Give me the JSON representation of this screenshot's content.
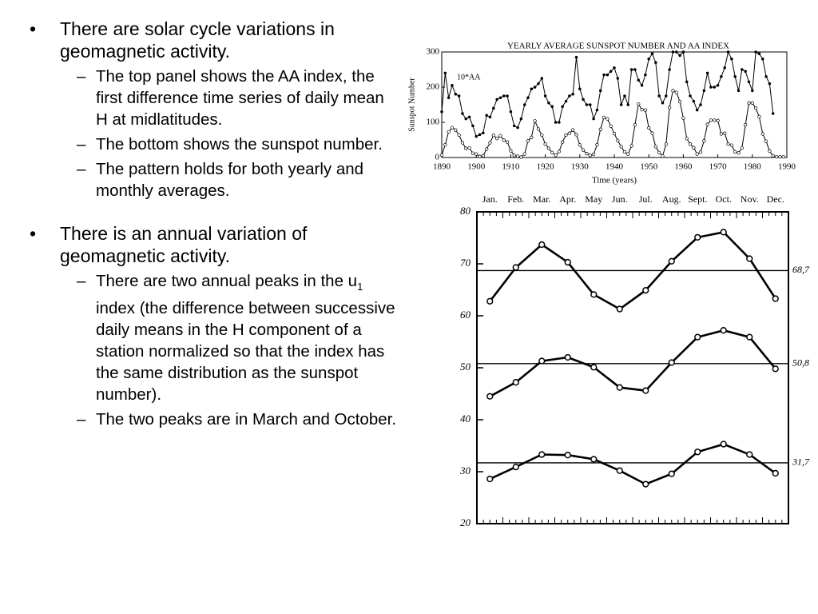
{
  "slide": {
    "bullets": [
      {
        "text": "There are solar cycle variations in geomagnetic activity.",
        "sub": [
          {
            "text": "The top panel shows the AA index, the first difference time series of daily mean H at midlatitudes."
          },
          {
            "text": "The bottom shows the sunspot number."
          },
          {
            "text": "The pattern holds for both yearly and monthly averages."
          }
        ]
      },
      {
        "text": "There is an annual variation of geomagnetic activity.",
        "sub": [
          {
            "text_parts": [
              "There are two annual peaks in the u",
              "1",
              " index (the difference between successive daily means in the H component of a station normalized so that the index has the same distribution as the sunspot number)."
            ]
          },
          {
            "text": "The two peaks are in March and October."
          }
        ]
      }
    ]
  },
  "chart_data": [
    {
      "type": "line",
      "title": "YEARLY AVERAGE SUNSPOT NUMBER AND AA INDEX",
      "y_label": "Sunspot Number",
      "x_label": "Time (years)",
      "x": [
        1890,
        1891,
        1892,
        1893,
        1894,
        1895,
        1896,
        1897,
        1898,
        1899,
        1900,
        1901,
        1902,
        1903,
        1904,
        1905,
        1906,
        1907,
        1908,
        1909,
        1910,
        1911,
        1912,
        1913,
        1914,
        1915,
        1916,
        1917,
        1918,
        1919,
        1920,
        1921,
        1922,
        1923,
        1924,
        1925,
        1926,
        1927,
        1928,
        1929,
        1930,
        1931,
        1932,
        1933,
        1934,
        1935,
        1936,
        1937,
        1938,
        1939,
        1940,
        1941,
        1942,
        1943,
        1944,
        1945,
        1946,
        1947,
        1948,
        1949,
        1950,
        1951,
        1952,
        1953,
        1954,
        1955,
        1956,
        1957,
        1958,
        1959,
        1960,
        1961,
        1962,
        1963,
        1964,
        1965,
        1966,
        1967,
        1968,
        1969,
        1970,
        1971,
        1972,
        1973,
        1974,
        1975,
        1976,
        1977,
        1978,
        1979,
        1980,
        1981,
        1982,
        1983,
        1984,
        1985,
        1986,
        1987,
        1988,
        1989
      ],
      "xlim": [
        1890,
        1990
      ],
      "xticks": [
        1890,
        1900,
        1910,
        1920,
        1930,
        1940,
        1950,
        1960,
        1970,
        1980,
        1990
      ],
      "ylim": [
        0,
        300
      ],
      "yticks": [
        0,
        100,
        200,
        300
      ],
      "series": [
        {
          "name": "10*AA",
          "color": "#000000",
          "marker": "dot",
          "values": [
            130,
            240,
            170,
            205,
            180,
            175,
            125,
            110,
            115,
            90,
            60,
            65,
            70,
            120,
            115,
            140,
            165,
            170,
            175,
            175,
            130,
            90,
            85,
            110,
            150,
            170,
            195,
            200,
            210,
            225,
            175,
            155,
            145,
            100,
            100,
            145,
            160,
            175,
            180,
            285,
            195,
            165,
            150,
            150,
            110,
            135,
            190,
            235,
            235,
            245,
            255,
            225,
            150,
            175,
            150,
            250,
            250,
            220,
            205,
            235,
            280,
            295,
            270,
            175,
            155,
            175,
            250,
            300,
            300,
            290,
            300,
            215,
            175,
            160,
            135,
            150,
            190,
            240,
            200,
            200,
            205,
            230,
            255,
            300,
            280,
            230,
            190,
            250,
            245,
            215,
            190,
            300,
            295,
            280,
            230,
            210,
            125,
            null,
            null,
            null
          ]
        },
        {
          "color": "#000000",
          "marker": "circle",
          "values": [
            7,
            36,
            73,
            85,
            78,
            64,
            42,
            26,
            27,
            12,
            10,
            3,
            5,
            24,
            42,
            63,
            54,
            62,
            49,
            44,
            19,
            6,
            4,
            1,
            10,
            47,
            57,
            104,
            81,
            64,
            38,
            26,
            14,
            6,
            17,
            44,
            64,
            69,
            78,
            65,
            36,
            21,
            11,
            6,
            9,
            36,
            80,
            114,
            110,
            89,
            68,
            48,
            31,
            16,
            10,
            33,
            93,
            152,
            136,
            135,
            84,
            69,
            31,
            14,
            4,
            38,
            142,
            190,
            185,
            159,
            112,
            54,
            38,
            28,
            10,
            15,
            47,
            94,
            106,
            106,
            105,
            67,
            69,
            38,
            35,
            16,
            13,
            27,
            93,
            155,
            155,
            140,
            116,
            67,
            46,
            18,
            5,
            2,
            2,
            2
          ]
        }
      ]
    },
    {
      "type": "line",
      "categories": [
        "Jan.",
        "Feb.",
        "Mar.",
        "Apr.",
        "May",
        "Jun.",
        "Jul.",
        "Aug.",
        "Sept.",
        "Oct.",
        "Nov.",
        "Dec."
      ],
      "ylim": [
        20,
        80
      ],
      "yticks": [
        20,
        30,
        40,
        50,
        60,
        70,
        80
      ],
      "reference_lines": [
        {
          "value": 68.7,
          "label": "68,7"
        },
        {
          "value": 50.8,
          "label": "50,8"
        },
        {
          "value": 31.7,
          "label": "31,7"
        }
      ],
      "series": [
        {
          "color": "#000000",
          "values": [
            62.8,
            69.3,
            73.7,
            70.3,
            64.1,
            61.3,
            64.9,
            70.5,
            75.1,
            76.1,
            71.0,
            63.3
          ]
        },
        {
          "color": "#000000",
          "values": [
            44.5,
            47.2,
            51.3,
            52.0,
            50.1,
            46.2,
            45.6,
            51.0,
            55.9,
            57.2,
            55.9,
            49.8
          ]
        },
        {
          "color": "#000000",
          "values": [
            28.6,
            30.9,
            33.3,
            33.2,
            32.4,
            30.2,
            27.6,
            29.6,
            33.8,
            35.3,
            33.3,
            29.7
          ]
        }
      ]
    }
  ]
}
